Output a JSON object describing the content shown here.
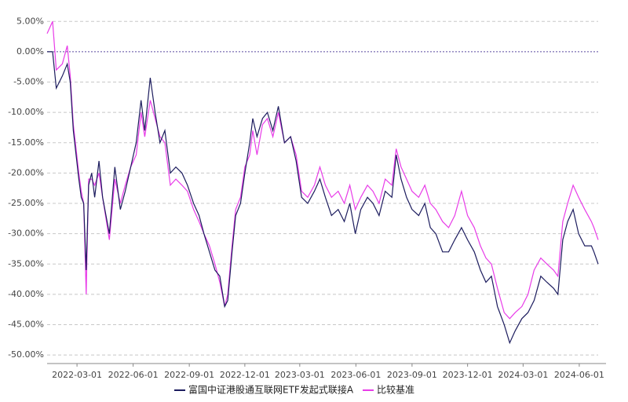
{
  "chart_data": {
    "type": "line",
    "x": [
      "2022-01-11",
      "2022-01-20",
      "2022-01-26",
      "2022-02-05",
      "2022-02-13",
      "2022-02-18",
      "2022-02-23",
      "2022-03-04",
      "2022-03-08",
      "2022-03-12",
      "2022-03-16",
      "2022-03-20",
      "2022-03-25",
      "2022-03-30",
      "2022-04-06",
      "2022-04-12",
      "2022-04-23",
      "2022-05-02",
      "2022-05-11",
      "2022-05-19",
      "2022-05-28",
      "2022-06-06",
      "2022-06-14",
      "2022-06-20",
      "2022-06-29",
      "2022-07-07",
      "2022-07-15",
      "2022-07-23",
      "2022-08-01",
      "2022-08-10",
      "2022-08-20",
      "2022-08-29",
      "2022-09-08",
      "2022-09-17",
      "2022-09-25",
      "2022-10-04",
      "2022-10-13",
      "2022-10-21",
      "2022-10-29",
      "2022-11-03",
      "2022-11-10",
      "2022-11-16",
      "2022-11-24",
      "2022-12-01",
      "2022-12-09",
      "2022-12-14",
      "2022-12-21",
      "2022-12-30",
      "2023-01-07",
      "2023-01-16",
      "2023-01-25",
      "2023-02-04",
      "2023-02-14",
      "2023-02-23",
      "2023-03-04",
      "2023-03-14",
      "2023-03-25",
      "2023-04-03",
      "2023-04-12",
      "2023-04-22",
      "2023-05-03",
      "2023-05-13",
      "2023-05-22",
      "2023-05-31",
      "2023-06-09",
      "2023-06-20",
      "2023-06-29",
      "2023-07-09",
      "2023-07-19",
      "2023-07-30",
      "2023-08-06",
      "2023-08-14",
      "2023-08-23",
      "2023-09-01",
      "2023-09-12",
      "2023-09-22",
      "2023-10-01",
      "2023-10-10",
      "2023-10-21",
      "2023-10-31",
      "2023-11-10",
      "2023-11-21",
      "2023-12-01",
      "2023-12-12",
      "2023-12-22",
      "2023-12-31",
      "2024-01-09",
      "2024-01-19",
      "2024-01-30",
      "2024-02-08",
      "2024-02-17",
      "2024-02-28",
      "2024-03-09",
      "2024-03-19",
      "2024-03-30",
      "2024-04-09",
      "2024-04-20",
      "2024-04-27",
      "2024-05-05",
      "2024-05-13",
      "2024-05-22",
      "2024-05-31",
      "2024-06-10",
      "2024-06-21",
      "2024-06-25",
      "2024-07-02"
    ],
    "series": [
      {
        "name": "富国中证港股通互联网ETF发起式联接A",
        "color": "#1c1c5e",
        "values": [
          0,
          0,
          -6,
          -4,
          -2,
          -5,
          -13,
          -21,
          -24,
          -25,
          -36,
          -22,
          -20,
          -24,
          -18,
          -24,
          -30,
          -19,
          -26,
          -23,
          -19,
          -15,
          -8,
          -13,
          -4.3,
          -10,
          -15,
          -13,
          -20,
          -19,
          -20,
          -22,
          -25,
          -27,
          -30,
          -33,
          -36,
          -37,
          -42,
          -41,
          -33,
          -27,
          -25,
          -20,
          -15,
          -11,
          -14,
          -11,
          -10,
          -13,
          -9,
          -15,
          -14,
          -18,
          -24,
          -25,
          -23,
          -21,
          -24,
          -27,
          -26,
          -28,
          -25,
          -30,
          -26,
          -24,
          -25,
          -27,
          -23,
          -24,
          -17,
          -21,
          -24,
          -26,
          -27,
          -25,
          -29,
          -30,
          -33,
          -33,
          -31,
          -29,
          -31,
          -33,
          -36,
          -38,
          -37,
          -42,
          -45,
          -48,
          -46,
          -44,
          -43,
          -41,
          -37,
          -38,
          -39,
          -40,
          -31,
          -28,
          -26,
          -30,
          -32,
          -32,
          -33,
          -35
        ]
      },
      {
        "name": "比较基准",
        "color": "#e83ce8",
        "values": [
          3,
          5,
          -3,
          -2,
          1,
          -4,
          -12,
          -20,
          -23,
          -25,
          -40,
          -21,
          -21,
          -22,
          -20,
          -24,
          -31,
          -21,
          -25,
          -22,
          -19,
          -17,
          -10,
          -14,
          -8,
          -11,
          -14,
          -15,
          -22,
          -21,
          -22,
          -23,
          -26,
          -28,
          -30,
          -32,
          -35,
          -38,
          -42,
          -40,
          -32,
          -26,
          -24,
          -19,
          -17,
          -13,
          -17,
          -12,
          -11,
          -14,
          -10,
          -15,
          -14,
          -17,
          -23,
          -24,
          -22,
          -19,
          -22,
          -24,
          -23,
          -25,
          -22,
          -26,
          -24,
          -22,
          -23,
          -25,
          -21,
          -22,
          -16,
          -19,
          -21,
          -23,
          -24,
          -22,
          -25,
          -26,
          -28,
          -29,
          -27,
          -23,
          -27,
          -29,
          -32,
          -34,
          -35,
          -39,
          -43,
          -44,
          -43,
          -42,
          -40,
          -36,
          -34,
          -35,
          -36,
          -37,
          -28,
          -25,
          -22,
          -24,
          -26,
          -28,
          -29,
          -31
        ]
      }
    ],
    "xlim": [
      "2022-01-11",
      "2024-07-02"
    ],
    "xticks": [
      "2022-03-01",
      "2022-06-01",
      "2022-09-01",
      "2022-12-01",
      "2023-03-01",
      "2023-06-01",
      "2023-09-01",
      "2023-12-01",
      "2024-03-01",
      "2024-06-01"
    ],
    "ylim": [
      -51.4,
      6.2
    ],
    "yticks": [
      {
        "value": 5,
        "label": "5.00%"
      },
      {
        "value": 0,
        "label": "0.00%"
      },
      {
        "value": -5,
        "label": "-5.00%"
      },
      {
        "value": -10,
        "label": "-10.00%"
      },
      {
        "value": -15,
        "label": "-15.00%"
      },
      {
        "value": -20,
        "label": "-20.00%"
      },
      {
        "value": -25,
        "label": "-25.00%"
      },
      {
        "value": -30,
        "label": "-30.00%"
      },
      {
        "value": -35,
        "label": "-35.00%"
      },
      {
        "value": -40,
        "label": "-40.00%"
      },
      {
        "value": -45,
        "label": "-45.00%"
      },
      {
        "value": -50,
        "label": "-50.00%"
      }
    ],
    "grid": true,
    "legend": "bottom"
  }
}
